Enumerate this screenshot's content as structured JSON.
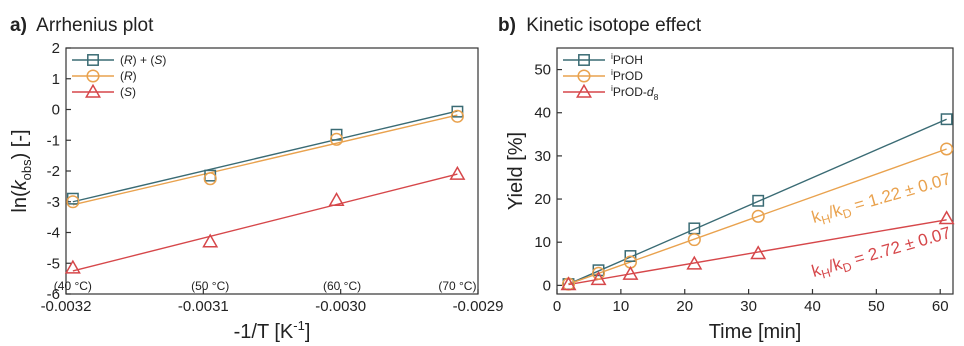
{
  "chart_data": [
    {
      "type": "scatter",
      "panel_letter": "a)",
      "title": "Arrhenius plot",
      "xlabel_main": "-1/T [K",
      "xlabel_sup": "-1",
      "xlabel_end": "]",
      "ylabel_pre": "ln(",
      "ylabel_k": "k",
      "ylabel_sub": "obs",
      "ylabel_post": ") [-]",
      "xlim": [
        -0.0032,
        -0.0029
      ],
      "ylim": [
        -6,
        2
      ],
      "xticks": [
        -0.0032,
        -0.0031,
        -0.003,
        -0.0029
      ],
      "xtick_labels": [
        "-0.0032",
        "-0.0031",
        "-0.0030",
        "-0.0029"
      ],
      "yticks": [
        -6,
        -5,
        -4,
        -3,
        -2,
        -1,
        0,
        1,
        2
      ],
      "ytick_labels": [
        "-6",
        "-5",
        "-4",
        "-3",
        "-2",
        "-1",
        "0",
        "1",
        "2"
      ],
      "grid": false,
      "legend_position": "top-left",
      "temperature_labels": [
        {
          "x": -0.003195,
          "text": "(40 °C)"
        },
        {
          "x": -0.003095,
          "text": "(50 °C)"
        },
        {
          "x": -0.002999,
          "text": "(60 °C)"
        },
        {
          "x": -0.002915,
          "text": "(70 °C)"
        }
      ],
      "series": [
        {
          "legend_parts": [
            [
              "(",
              "n"
            ],
            [
              "R",
              "i"
            ],
            [
              ") + (",
              "n"
            ],
            [
              "S",
              "i"
            ],
            [
              ")",
              "n"
            ]
          ],
          "marker": "square",
          "color": "#3a6b74",
          "x": [
            -0.003195,
            -0.003095,
            -0.003003,
            -0.002915
          ],
          "y": [
            -2.9,
            -2.15,
            -0.82,
            -0.07
          ],
          "fit": [
            [
              -0.003195,
              -3.0
            ],
            [
              -0.002915,
              -0.05
            ]
          ]
        },
        {
          "legend_parts": [
            [
              "(",
              "n"
            ],
            [
              "R",
              "i"
            ],
            [
              ")",
              "n"
            ]
          ],
          "marker": "circle",
          "color": "#e9a24e",
          "x": [
            -0.003195,
            -0.003095,
            -0.003003,
            -0.002915
          ],
          "y": [
            -3.0,
            -2.25,
            -0.97,
            -0.22
          ],
          "fit": [
            [
              -0.003195,
              -3.1
            ],
            [
              -0.002915,
              -0.18
            ]
          ]
        },
        {
          "legend_parts": [
            [
              "(",
              "n"
            ],
            [
              "S",
              "i"
            ],
            [
              ")",
              "n"
            ]
          ],
          "marker": "triangle",
          "color": "#d6474a",
          "x": [
            -0.003195,
            -0.003095,
            -0.003003,
            -0.002915
          ],
          "y": [
            -5.15,
            -4.3,
            -2.95,
            -2.1
          ],
          "fit": [
            [
              -0.003195,
              -5.25
            ],
            [
              -0.002915,
              -2.1
            ]
          ]
        }
      ]
    },
    {
      "type": "scatter",
      "panel_letter": "b)",
      "title": "Kinetic isotope effect",
      "xlabel": "Time [min]",
      "ylabel": "Yield [%]",
      "xlim": [
        0,
        62
      ],
      "ylim": [
        -2,
        55
      ],
      "xticks": [
        0,
        10,
        20,
        30,
        40,
        50,
        60
      ],
      "xtick_labels": [
        "0",
        "10",
        "20",
        "30",
        "40",
        "50",
        "60"
      ],
      "yticks": [
        0,
        10,
        20,
        30,
        40,
        50
      ],
      "ytick_labels": [
        "0",
        "10",
        "20",
        "30",
        "40",
        "50"
      ],
      "grid": false,
      "legend_position": "top-left",
      "series": [
        {
          "legend_parts": [
            [
              "i",
              "sup"
            ],
            [
              "PrOH",
              "n"
            ]
          ],
          "marker": "square",
          "color": "#3a6b74",
          "x": [
            1.8,
            6.5,
            11.5,
            21.5,
            31.5,
            61
          ],
          "y": [
            0.3,
            3.5,
            6.8,
            13.2,
            19.6,
            38.5
          ],
          "fit": [
            [
              1.8,
              0.3
            ],
            [
              61,
              38.5
            ]
          ]
        },
        {
          "legend_parts": [
            [
              "i",
              "sup"
            ],
            [
              "PrOD",
              "n"
            ]
          ],
          "marker": "circle",
          "color": "#e9a24e",
          "x": [
            1.8,
            6.5,
            11.5,
            21.5,
            31.5,
            61
          ],
          "y": [
            0.3,
            2.8,
            5.4,
            10.6,
            16.0,
            31.6
          ],
          "fit": [
            [
              1.8,
              0.3
            ],
            [
              61,
              31.6
            ]
          ]
        },
        {
          "legend_parts": [
            [
              "i",
              "sup"
            ],
            [
              "PrOD-",
              "n"
            ],
            [
              "d",
              "i"
            ],
            [
              "8",
              "sub"
            ]
          ],
          "marker": "triangle",
          "color": "#d6474a",
          "x": [
            1.8,
            6.5,
            11.5,
            21.5,
            31.5,
            61
          ],
          "y": [
            0.2,
            1.4,
            2.6,
            5.0,
            7.4,
            15.5
          ],
          "fit": [
            [
              1.8,
              0.2
            ],
            [
              61,
              15.2
            ]
          ]
        }
      ],
      "annotations": [
        {
          "color": "#e9a24e",
          "x": 51,
          "y": 19,
          "parts": [
            [
              "k",
              "n"
            ],
            [
              "H",
              "sub"
            ],
            [
              "/k",
              "n"
            ],
            [
              "D",
              "sub"
            ],
            [
              " = 1.22 ± 0.07",
              "n"
            ]
          ]
        },
        {
          "color": "#d6474a",
          "x": 51,
          "y": 6.5,
          "parts": [
            [
              "k",
              "n"
            ],
            [
              "H",
              "sub"
            ],
            [
              "/k",
              "n"
            ],
            [
              "D",
              "sub"
            ],
            [
              " = 2.72 ± 0.07",
              "n"
            ]
          ]
        }
      ]
    }
  ]
}
